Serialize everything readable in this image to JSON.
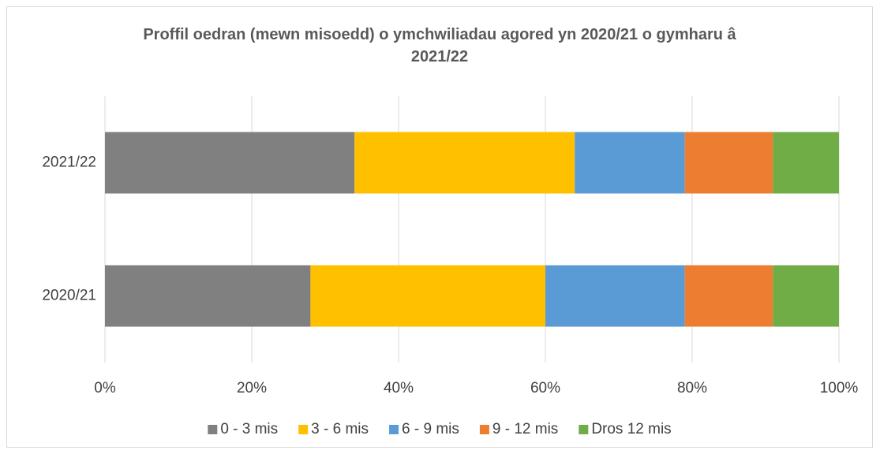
{
  "chart_data": {
    "type": "stacked_barh",
    "title": "Proffil oedran (mewn misoedd) o ymchwiliadau agored yn 2020/21 o gymharu â 2021/22",
    "categories": [
      "2021/22",
      "2020/21"
    ],
    "series": [
      {
        "name": "0 - 3 mis",
        "color": "#808080",
        "values": [
          34,
          28
        ]
      },
      {
        "name": "3 - 6 mis",
        "color": "#ffc000",
        "values": [
          30,
          32
        ]
      },
      {
        "name": "6 - 9 mis",
        "color": "#5b9bd5",
        "values": [
          15,
          19
        ]
      },
      {
        "name": "9 - 12 mis",
        "color": "#ed7d31",
        "values": [
          12,
          12
        ]
      },
      {
        "name": "Dros 12 mis",
        "color": "#70ad47",
        "values": [
          9,
          9
        ]
      }
    ],
    "xlim": [
      0,
      100
    ],
    "xticks": [
      {
        "value": 0,
        "label": "0%"
      },
      {
        "value": 20,
        "label": "20%"
      },
      {
        "value": 40,
        "label": "40%"
      },
      {
        "value": 60,
        "label": "60%"
      },
      {
        "value": 80,
        "label": "80%"
      },
      {
        "value": 100,
        "label": "100%"
      }
    ],
    "grid": true,
    "legend": "bottom"
  }
}
